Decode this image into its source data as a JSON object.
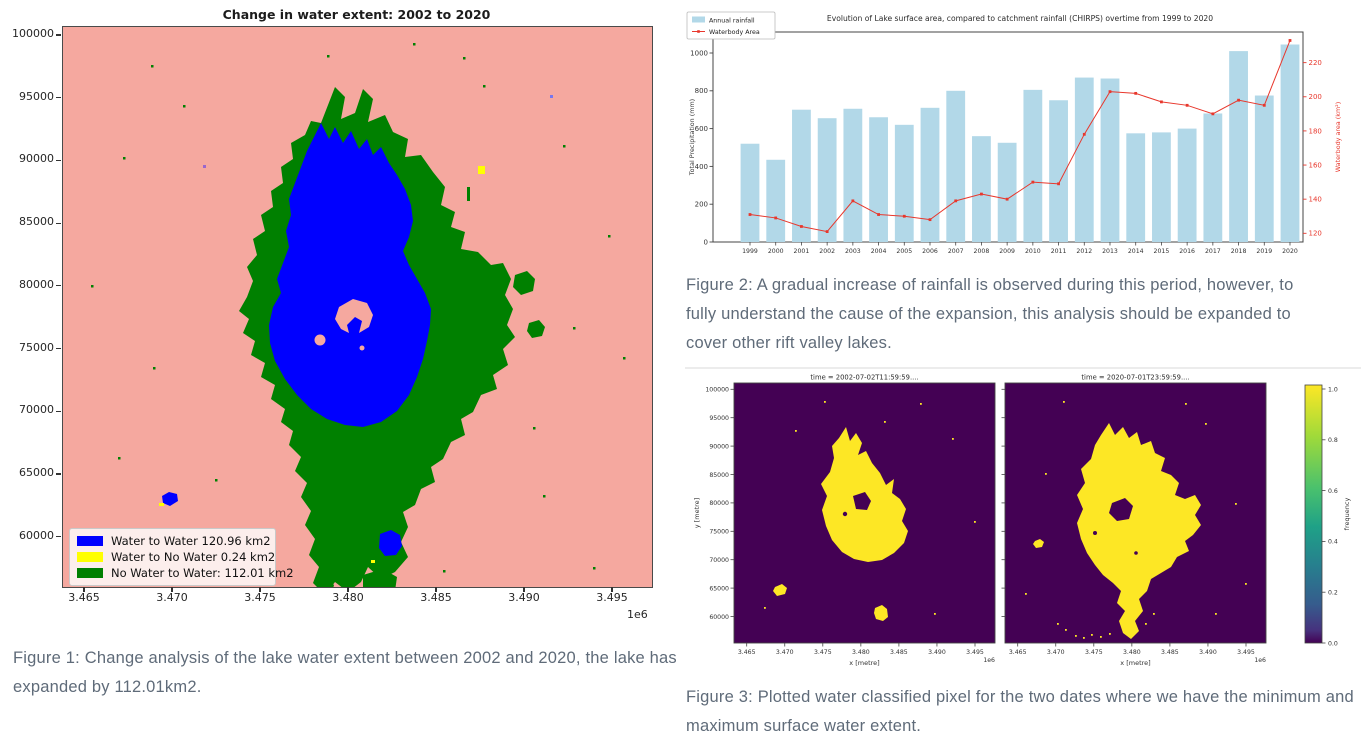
{
  "captions": {
    "figure1": "Figure 1: Change analysis of the lake water extent between 2002 and 2020, the lake has expanded by 112.01km2.",
    "figure2": "Figure 2: A gradual increase of rainfall is observed during this period, however, to fully understand the cause of the expansion, this analysis should be expanded to cover other rift valley lakes.",
    "figure3": "Figure 3: Plotted water classified pixel for the two dates where we have the minimum and maximum surface water extent."
  },
  "chart_data": [
    {
      "id": "figure1-change-map",
      "type": "heatmap",
      "title": "Change in water extent: 2002 to 2020",
      "x_tick_labels": [
        "3.465",
        "3.470",
        "3.475",
        "3.480",
        "3.485",
        "3.490",
        "3.495"
      ],
      "x_offset_label": "1e6",
      "y_tick_labels": [
        "100000",
        "95000",
        "90000",
        "85000",
        "80000",
        "75000",
        "70000",
        "65000",
        "60000"
      ],
      "background_color": "#f5a89f",
      "legend": [
        {
          "label": "Water to Water 120.96 km2",
          "color": "#0000ff",
          "area_km2": 120.96
        },
        {
          "label": "Water to No Water 0.24 km2",
          "color": "#ffff00",
          "area_km2": 0.24
        },
        {
          "label": "No Water to Water: 112.01 km2",
          "color": "#008000",
          "area_km2": 112.01
        }
      ]
    },
    {
      "id": "figure2-rainfall-vs-area",
      "type": "bar",
      "title": "Evolution of Lake surface area, compared to catchment rainfall (CHIRPS) overtime from 1999 to 2020",
      "categories": [
        "1999",
        "2000",
        "2001",
        "2002",
        "2003",
        "2004",
        "2005",
        "2006",
        "2007",
        "2008",
        "2009",
        "2010",
        "2011",
        "2012",
        "2013",
        "2014",
        "2015",
        "2016",
        "2017",
        "2018",
        "2019",
        "2020"
      ],
      "series": [
        {
          "name": "Annual rainfall",
          "type": "bar",
          "axis": "left",
          "color": "#b2d8e8",
          "values": [
            520,
            435,
            700,
            655,
            705,
            660,
            620,
            710,
            800,
            560,
            525,
            805,
            750,
            870,
            865,
            575,
            580,
            600,
            680,
            1010,
            775,
            1045
          ]
        },
        {
          "name": "Waterbody Area",
          "type": "line",
          "axis": "right",
          "color": "#e8372c",
          "values": [
            131,
            129,
            124,
            121,
            139,
            131,
            130,
            128,
            139,
            143,
            140,
            150,
            149,
            178,
            203,
            202,
            197,
            195,
            190,
            198,
            195,
            233
          ]
        }
      ],
      "ylabel_left": "Total Precipitation (mm)",
      "yticks_left": [
        0,
        200,
        400,
        600,
        800,
        1000
      ],
      "ylim_left": [
        0,
        1111
      ],
      "ylabel_right": "Waterbody area (km²)",
      "yticks_right": [
        120,
        140,
        160,
        180,
        200,
        220
      ],
      "ylim_right": [
        118,
        237
      ],
      "legend_position": "upper left",
      "grid": false
    },
    {
      "id": "figure3-water-classified-pixels",
      "type": "heatmap",
      "subplots": [
        {
          "title": "time = 2002-07-02T11:59:59...."
        },
        {
          "title": "time = 2020-07-01T23:59:59...."
        }
      ],
      "xlabel": "x [metre]",
      "ylabel": "y [metre]",
      "x_tick_labels": [
        "3.465",
        "3.470",
        "3.475",
        "3.480",
        "3.485",
        "3.490",
        "3.495"
      ],
      "x_offset_label": "1e6",
      "y_tick_labels": [
        "100000",
        "95000",
        "90000",
        "85000",
        "80000",
        "75000",
        "70000",
        "65000",
        "60000"
      ],
      "colorbar": {
        "label": "frequency",
        "ticks": [
          "1.0",
          "0.8",
          "0.6",
          "0.4",
          "0.2",
          "0.0"
        ],
        "colormap": "viridis",
        "min_color": "#440154",
        "max_color": "#fde725"
      },
      "water_color": "#fde725",
      "background_color": "#440154"
    }
  ]
}
